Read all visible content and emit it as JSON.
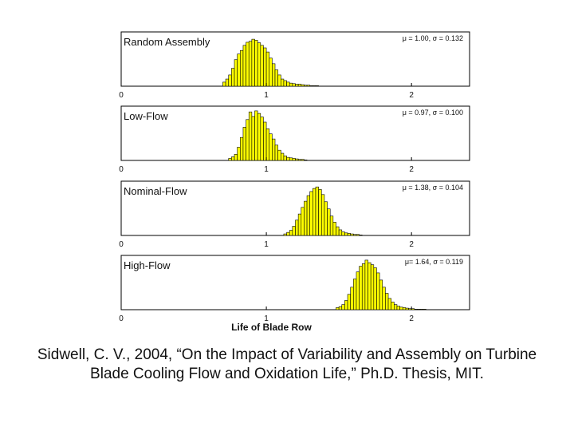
{
  "chart_data": [
    {
      "type": "bar",
      "title": "Random Assembly",
      "stats": "μ = 1.00, σ = 0.132",
      "xlim": [
        0,
        2.4
      ],
      "ylim": [
        0,
        1
      ],
      "xticks": [
        "0",
        "1",
        "2"
      ],
      "bin_start": 0.7,
      "bin_width": 0.02,
      "values": [
        0.08,
        0.14,
        0.22,
        0.35,
        0.52,
        0.63,
        0.7,
        0.8,
        0.86,
        0.88,
        0.92,
        0.9,
        0.85,
        0.8,
        0.75,
        0.67,
        0.55,
        0.44,
        0.32,
        0.22,
        0.14,
        0.11,
        0.08,
        0.06,
        0.05,
        0.04,
        0.04,
        0.03,
        0.02,
        0.02,
        0.01,
        0.01,
        0.01
      ]
    },
    {
      "type": "bar",
      "title": "Low-Flow",
      "stats": "μ = 0.97, σ = 0.100",
      "xlim": [
        0,
        2.4
      ],
      "ylim": [
        0,
        1
      ],
      "xticks": [
        "0",
        "1",
        "2"
      ],
      "bin_start": 0.74,
      "bin_width": 0.02,
      "values": [
        0.04,
        0.07,
        0.12,
        0.26,
        0.45,
        0.65,
        0.8,
        0.95,
        0.86,
        0.97,
        0.92,
        0.85,
        0.75,
        0.62,
        0.52,
        0.42,
        0.3,
        0.2,
        0.14,
        0.09,
        0.06,
        0.05,
        0.04,
        0.03,
        0.02,
        0.02,
        0.01
      ]
    },
    {
      "type": "bar",
      "title": "Nominal-Flow",
      "stats": "μ = 1.38, σ = 0.104",
      "xlim": [
        0,
        2.4
      ],
      "ylim": [
        0,
        1
      ],
      "xticks": [
        "0",
        "1",
        "2"
      ],
      "bin_start": 1.12,
      "bin_width": 0.02,
      "values": [
        0.03,
        0.06,
        0.1,
        0.18,
        0.3,
        0.42,
        0.55,
        0.67,
        0.78,
        0.86,
        0.92,
        0.95,
        0.9,
        0.8,
        0.66,
        0.52,
        0.38,
        0.26,
        0.17,
        0.11,
        0.07,
        0.05,
        0.04,
        0.03,
        0.02,
        0.02,
        0.01
      ]
    },
    {
      "type": "bar",
      "title": "High-Flow",
      "stats": "μ= 1.64, σ = 0.119",
      "xlim": [
        0,
        2.4
      ],
      "ylim": [
        0,
        1
      ],
      "xticks": [
        "0",
        "1",
        "2"
      ],
      "xlabel": "Life of Blade Row",
      "bin_start": 1.48,
      "bin_width": 0.02,
      "values": [
        0.04,
        0.06,
        0.1,
        0.18,
        0.3,
        0.44,
        0.6,
        0.74,
        0.85,
        0.9,
        0.97,
        0.92,
        0.88,
        0.82,
        0.72,
        0.58,
        0.44,
        0.32,
        0.22,
        0.15,
        0.1,
        0.07,
        0.05,
        0.04,
        0.03,
        0.02,
        0.02,
        0.01,
        0.01,
        0.01,
        0.01
      ]
    }
  ],
  "caption": {
    "line1": "Sidwell, C. V., 2004, “On the Impact of Variability and Assembly on Turbine",
    "line2": "Blade Cooling Flow and Oxidation Life,” Ph.D. Thesis, MIT."
  },
  "colors": {
    "bar_fill": "#ffff00",
    "bar_stroke": "#000000",
    "axis": "#000000",
    "text": "#111111"
  }
}
